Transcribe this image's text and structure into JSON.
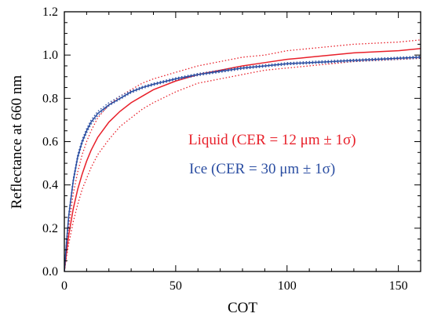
{
  "chart_data": {
    "type": "line",
    "title": "",
    "xlabel": "COT",
    "ylabel": "Reflectance at 660 nm",
    "xlim": [
      0,
      160
    ],
    "ylim": [
      0,
      1.2
    ],
    "xticks": [
      0,
      50,
      100,
      150
    ],
    "xtick_labels": [
      "0",
      "50",
      "100",
      "150"
    ],
    "yticks": [
      0.0,
      0.2,
      0.4,
      0.6,
      0.8,
      1.0,
      1.2
    ],
    "ytick_labels": [
      "0.0",
      "0.2",
      "0.4",
      "0.6",
      "0.8",
      "1.0",
      "1.2"
    ],
    "grid": false,
    "legend_position": "center-right",
    "series": [
      {
        "name": "Liquid (CER = 12 μm ± 1σ)",
        "color": "#e8202a",
        "x": [
          0,
          1,
          2,
          4,
          6,
          8,
          10,
          12,
          15,
          20,
          25,
          30,
          35,
          40,
          50,
          60,
          70,
          80,
          90,
          100,
          110,
          120,
          130,
          140,
          150,
          160
        ],
        "values": [
          0.0,
          0.09,
          0.17,
          0.29,
          0.38,
          0.45,
          0.51,
          0.56,
          0.62,
          0.69,
          0.74,
          0.78,
          0.81,
          0.84,
          0.88,
          0.91,
          0.93,
          0.95,
          0.965,
          0.98,
          0.99,
          1.0,
          1.01,
          1.015,
          1.02,
          1.03
        ]
      },
      {
        "name": "Liquid (CER = 12 μm ± 1σ) upper bound",
        "color": "#e8202a",
        "style": "dotted",
        "x": [
          0,
          1,
          2,
          4,
          6,
          8,
          10,
          12,
          15,
          20,
          25,
          30,
          35,
          40,
          50,
          60,
          70,
          80,
          90,
          100,
          110,
          120,
          130,
          140,
          150,
          160
        ],
        "values": [
          0.0,
          0.11,
          0.21,
          0.36,
          0.46,
          0.54,
          0.6,
          0.65,
          0.71,
          0.77,
          0.81,
          0.84,
          0.87,
          0.89,
          0.92,
          0.95,
          0.97,
          0.99,
          1.0,
          1.02,
          1.03,
          1.04,
          1.05,
          1.055,
          1.06,
          1.07
        ]
      },
      {
        "name": "Liquid (CER = 12 μm ± 1σ) lower bound",
        "color": "#e8202a",
        "style": "dotted",
        "x": [
          0,
          1,
          2,
          4,
          6,
          8,
          10,
          12,
          15,
          20,
          25,
          30,
          35,
          40,
          50,
          60,
          70,
          80,
          90,
          100,
          110,
          120,
          130,
          140,
          150,
          160
        ],
        "values": [
          0.0,
          0.07,
          0.13,
          0.23,
          0.31,
          0.38,
          0.43,
          0.48,
          0.54,
          0.61,
          0.67,
          0.71,
          0.75,
          0.78,
          0.83,
          0.87,
          0.89,
          0.91,
          0.93,
          0.94,
          0.95,
          0.96,
          0.97,
          0.975,
          0.98,
          0.985
        ]
      },
      {
        "name": "Ice (CER = 30 μm ± 1σ)",
        "color": "#2b4ea2",
        "x": [
          0,
          1,
          2,
          4,
          6,
          8,
          10,
          12,
          15,
          20,
          25,
          30,
          35,
          40,
          50,
          60,
          70,
          80,
          90,
          100,
          110,
          120,
          130,
          140,
          150,
          160
        ],
        "values": [
          0.0,
          0.14,
          0.26,
          0.42,
          0.53,
          0.6,
          0.65,
          0.69,
          0.73,
          0.77,
          0.8,
          0.83,
          0.85,
          0.865,
          0.89,
          0.91,
          0.925,
          0.94,
          0.95,
          0.96,
          0.965,
          0.97,
          0.975,
          0.98,
          0.985,
          0.99
        ]
      },
      {
        "name": "Ice (CER = 30 μm ± 1σ) upper bound",
        "color": "#2b4ea2",
        "style": "dotted",
        "x": [
          0,
          1,
          2,
          4,
          6,
          8,
          10,
          12,
          15,
          20,
          25,
          30,
          35,
          40,
          50,
          60,
          70,
          80,
          90,
          100,
          110,
          120,
          130,
          140,
          150,
          160
        ],
        "values": [
          0.0,
          0.15,
          0.27,
          0.43,
          0.54,
          0.61,
          0.66,
          0.7,
          0.74,
          0.78,
          0.81,
          0.835,
          0.855,
          0.87,
          0.895,
          0.915,
          0.93,
          0.945,
          0.955,
          0.965,
          0.97,
          0.975,
          0.98,
          0.985,
          0.99,
          0.995
        ]
      },
      {
        "name": "Ice (CER = 30 μm ± 1σ) lower bound",
        "color": "#2b4ea2",
        "style": "dotted",
        "x": [
          0,
          1,
          2,
          4,
          6,
          8,
          10,
          12,
          15,
          20,
          25,
          30,
          35,
          40,
          50,
          60,
          70,
          80,
          90,
          100,
          110,
          120,
          130,
          140,
          150,
          160
        ],
        "values": [
          0.0,
          0.13,
          0.25,
          0.41,
          0.52,
          0.59,
          0.64,
          0.68,
          0.72,
          0.765,
          0.795,
          0.825,
          0.845,
          0.86,
          0.885,
          0.905,
          0.92,
          0.935,
          0.945,
          0.955,
          0.96,
          0.965,
          0.97,
          0.975,
          0.98,
          0.985
        ]
      }
    ],
    "legend": [
      {
        "label": "Liquid (CER = 12 μm ± 1σ)",
        "color": "#e8202a"
      },
      {
        "label": "Ice (CER = 30 μm ± 1σ)",
        "color": "#2b4ea2"
      }
    ]
  }
}
